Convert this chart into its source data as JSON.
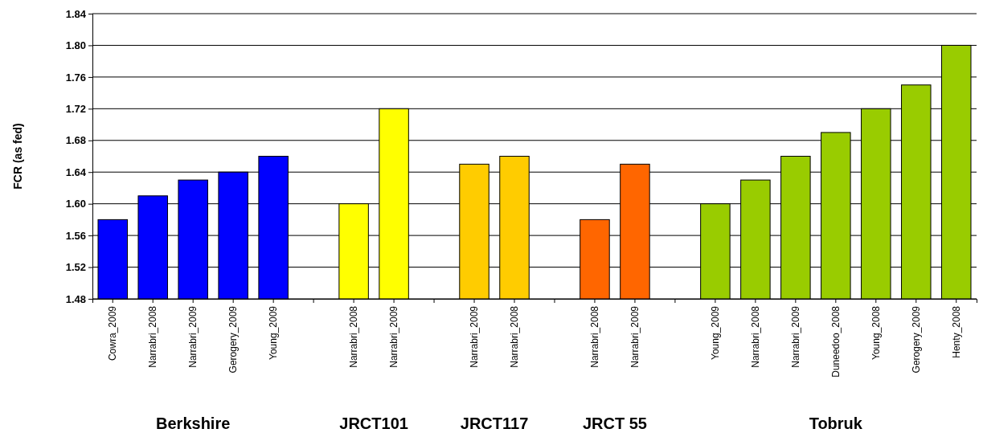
{
  "chart_data": {
    "type": "bar",
    "ylabel": "FCR (as fed)",
    "categories": [
      "Cowra_2009",
      "Narrabri_2008",
      "Narrabri_2009",
      "Gerogery_2009",
      "Young_2009",
      null,
      "Narrabri_2008",
      "Narrabri_2009",
      null,
      "Narrabri_2009",
      "Narrabri_2008",
      null,
      "Narrabri_2008",
      "Narrabri_2009",
      null,
      "Young_2009",
      "Narrabri_2008",
      "Narrabri_2009",
      "Duneedoo_2008",
      "Young_2008",
      "Gerogery_2009",
      "Henty_2008"
    ],
    "values": [
      1.58,
      1.61,
      1.63,
      1.64,
      1.66,
      null,
      1.6,
      1.72,
      null,
      1.65,
      1.66,
      null,
      1.58,
      1.65,
      null,
      1.6,
      1.63,
      1.66,
      1.69,
      1.72,
      1.75,
      1.8
    ],
    "colors": [
      "#0000ff",
      "#0000ff",
      "#0000ff",
      "#0000ff",
      "#0000ff",
      null,
      "#ffff00",
      "#ffff00",
      null,
      "#ffcc00",
      "#ffcc00",
      null,
      "#ff6600",
      "#ff6600",
      null,
      "#99cc00",
      "#99cc00",
      "#99cc00",
      "#99cc00",
      "#99cc00",
      "#99cc00",
      "#99cc00"
    ],
    "ylim": [
      1.48,
      1.84
    ],
    "yticks": [
      {
        "value": 1.48,
        "label": "1.48"
      },
      {
        "value": 1.52,
        "label": "1.52"
      },
      {
        "value": 1.56,
        "label": "1.56"
      },
      {
        "value": 1.6,
        "label": "1.60"
      },
      {
        "value": 1.64,
        "label": "1.64"
      },
      {
        "value": 1.68,
        "label": "1.68"
      },
      {
        "value": 1.72,
        "label": "1.72"
      },
      {
        "value": 1.76,
        "label": "1.76"
      },
      {
        "value": 1.8,
        "label": "1.80"
      },
      {
        "value": 1.84,
        "label": "1.84"
      }
    ],
    "grid": "y",
    "annotations": [
      "Berkshire",
      "JRCT101",
      "JRCT117",
      "JRCT 55",
      "Tobruk"
    ]
  }
}
